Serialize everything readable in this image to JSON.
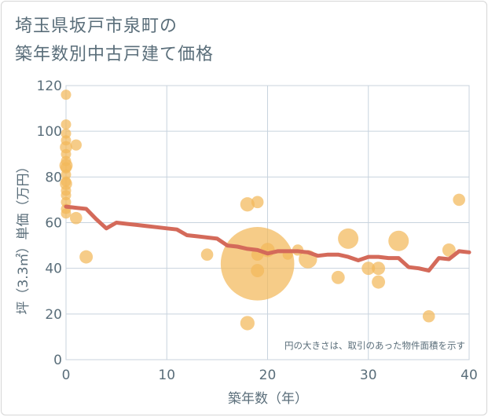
{
  "title_line1": "埼玉県坂戸市泉町の",
  "title_line2": "築年数別中古戸建て価格",
  "colors": {
    "bubble": "#f3b95a",
    "line": "#d46a5a",
    "grid": "#c8d3de",
    "text": "#5a6e7a"
  },
  "chart_data": {
    "type": "scatter",
    "xlabel": "築年数（年）",
    "ylabel": "坪（3.3㎡）単価（万円）",
    "xlim": [
      0,
      40
    ],
    "ylim": [
      0,
      120
    ],
    "xticks": [
      0,
      10,
      20,
      30,
      40
    ],
    "yticks": [
      0,
      20,
      40,
      60,
      80,
      100,
      120
    ],
    "grid": true,
    "annotation": "円の大きさは、取引のあった物件面積を示す",
    "points": [
      {
        "x": 0,
        "y": 116,
        "size": 1
      },
      {
        "x": 0,
        "y": 103,
        "size": 1
      },
      {
        "x": 0,
        "y": 99,
        "size": 1
      },
      {
        "x": 0,
        "y": 96,
        "size": 1
      },
      {
        "x": 0,
        "y": 93,
        "size": 1.2
      },
      {
        "x": 0,
        "y": 90,
        "size": 1
      },
      {
        "x": 0,
        "y": 87,
        "size": 1
      },
      {
        "x": 0,
        "y": 85,
        "size": 1.3
      },
      {
        "x": 0,
        "y": 84,
        "size": 1.1
      },
      {
        "x": 0,
        "y": 81,
        "size": 1
      },
      {
        "x": 0,
        "y": 78,
        "size": 1
      },
      {
        "x": 0,
        "y": 77,
        "size": 1.2
      },
      {
        "x": 0,
        "y": 74,
        "size": 1
      },
      {
        "x": 0,
        "y": 72,
        "size": 1
      },
      {
        "x": 0,
        "y": 69,
        "size": 1
      },
      {
        "x": 0,
        "y": 66,
        "size": 1
      },
      {
        "x": 0,
        "y": 64,
        "size": 1
      },
      {
        "x": 1,
        "y": 94,
        "size": 1.1
      },
      {
        "x": 1,
        "y": 62,
        "size": 1.2
      },
      {
        "x": 2,
        "y": 45,
        "size": 1.3
      },
      {
        "x": 14,
        "y": 46,
        "size": 1.2
      },
      {
        "x": 18,
        "y": 68,
        "size": 1.4
      },
      {
        "x": 18,
        "y": 16,
        "size": 1.4
      },
      {
        "x": 19,
        "y": 69,
        "size": 1.2
      },
      {
        "x": 19,
        "y": 42,
        "size": 7.2
      },
      {
        "x": 19,
        "y": 39,
        "size": 1.3
      },
      {
        "x": 19,
        "y": 46,
        "size": 1.2
      },
      {
        "x": 20,
        "y": 48,
        "size": 1.4
      },
      {
        "x": 22,
        "y": 46,
        "size": 1
      },
      {
        "x": 23,
        "y": 48,
        "size": 1.1
      },
      {
        "x": 24,
        "y": 44,
        "size": 1.8
      },
      {
        "x": 27,
        "y": 36,
        "size": 1.3
      },
      {
        "x": 28,
        "y": 53,
        "size": 2
      },
      {
        "x": 30,
        "y": 40,
        "size": 1.3
      },
      {
        "x": 31,
        "y": 40,
        "size": 1.3
      },
      {
        "x": 31,
        "y": 34,
        "size": 1.3
      },
      {
        "x": 33,
        "y": 52,
        "size": 2
      },
      {
        "x": 36,
        "y": 19,
        "size": 1.2
      },
      {
        "x": 38,
        "y": 48,
        "size": 1.3
      },
      {
        "x": 39,
        "y": 70,
        "size": 1.2
      }
    ],
    "trend_line": {
      "x": [
        0,
        1,
        2,
        3,
        4,
        5,
        6,
        7,
        8,
        9,
        10,
        11,
        12,
        13,
        14,
        15,
        16,
        17,
        18,
        19,
        20,
        21,
        22,
        23,
        24,
        25,
        26,
        27,
        28,
        29,
        30,
        31,
        32,
        33,
        34,
        35,
        36,
        37,
        38,
        39,
        40
      ],
      "y": [
        67,
        66.5,
        66,
        61.5,
        57.5,
        60,
        59.5,
        59,
        58.5,
        58,
        57.5,
        57,
        54.5,
        54,
        53.5,
        53,
        50,
        49.5,
        48.5,
        48,
        46.5,
        47.5,
        47.5,
        47.5,
        47,
        45.5,
        46,
        46,
        45,
        43.5,
        45,
        45,
        44.5,
        44.5,
        40.5,
        40,
        39,
        44.5,
        44,
        47.5,
        47
      ]
    }
  }
}
